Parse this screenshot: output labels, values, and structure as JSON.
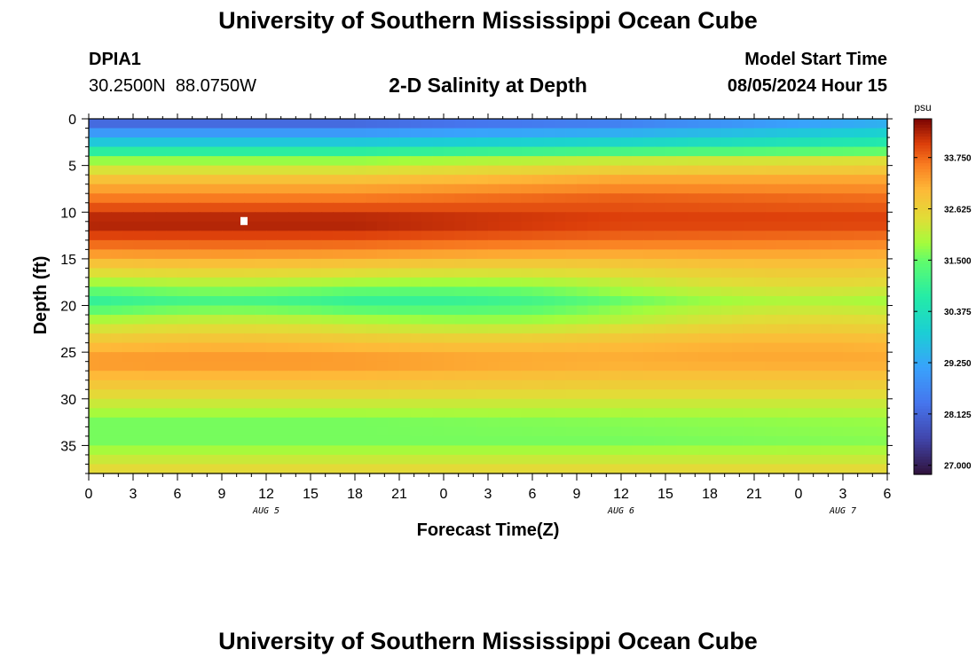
{
  "header": {
    "title_top": "University of Southern Mississippi Ocean Cube",
    "station_id": "DPIA1",
    "coordinates": "30.2500N  88.0750W",
    "subtitle": "2-D Salinity at Depth",
    "model_start_label": "Model Start Time",
    "model_start_value": "08/05/2024 Hour 15"
  },
  "footer": {
    "title_bottom": "University of Southern Mississippi Ocean Cube"
  },
  "chart_data": {
    "type": "heatmap",
    "title": "2-D Salinity at Depth",
    "xlabel": "Forecast Time(Z)",
    "ylabel": "Depth (ft)",
    "x_ticks": [
      "0",
      "3",
      "6",
      "9",
      "12",
      "15",
      "18",
      "21",
      "0",
      "3",
      "6",
      "9",
      "12",
      "15",
      "18",
      "21",
      "0",
      "3",
      "6"
    ],
    "x_range_hours": [
      0,
      54
    ],
    "day_labels": [
      {
        "label": "AUG 5",
        "hour": 12
      },
      {
        "label": "AUG 6",
        "hour": 36
      },
      {
        "label": "AUG 7",
        "hour": 51
      }
    ],
    "y_ticks": [
      "0",
      "5",
      "10",
      "15",
      "20",
      "25",
      "30",
      "35"
    ],
    "y_range_ft": [
      0,
      38
    ],
    "colorbar": {
      "unit": "psu",
      "min": 26.8,
      "max": 34.6,
      "ticks": [
        "27.000",
        "28.125",
        "29.250",
        "30.375",
        "31.500",
        "32.625",
        "33.750"
      ]
    },
    "max_marker": {
      "hour": 10.5,
      "depth_ft": 11.0
    },
    "salinity_profile": {
      "depth_ft": [
        0.5,
        2.5,
        4.5,
        6.5,
        8.5,
        11.0,
        13.0,
        15.0,
        17.5,
        19.5,
        21.5,
        24.0,
        26.0,
        28.5,
        30.5,
        32.5,
        34.5,
        36.5,
        38.0
      ],
      "psu_day1": [
        28.2,
        29.8,
        31.8,
        32.9,
        33.6,
        34.4,
        33.9,
        33.1,
        31.9,
        30.9,
        31.9,
        32.9,
        33.4,
        32.8,
        32.2,
        31.6,
        31.6,
        32.2,
        32.6
      ],
      "psu_day2": [
        28.6,
        30.1,
        32.2,
        33.2,
        33.8,
        34.1,
        33.7,
        33.0,
        32.2,
        31.6,
        32.1,
        33.0,
        33.2,
        32.7,
        32.2,
        31.7,
        31.6,
        32.2,
        32.6
      ],
      "psu_day3": [
        29.4,
        30.6,
        32.4,
        33.2,
        33.7,
        34.1,
        33.6,
        33.0,
        32.4,
        31.8,
        32.3,
        33.0,
        33.2,
        32.7,
        32.2,
        31.8,
        31.7,
        32.2,
        32.6
      ]
    }
  }
}
